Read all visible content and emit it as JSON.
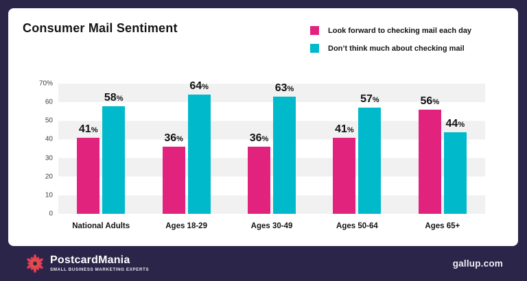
{
  "colors": {
    "background": "#2B2549",
    "card": "#FFFFFF",
    "pink": "#E2237E",
    "cyan": "#00B9CB",
    "stripe": "#F1F1F2"
  },
  "chart_data": {
    "type": "bar",
    "title": "Consumer Mail Sentiment",
    "categories": [
      "National Adults",
      "Ages 18-29",
      "Ages 30-49",
      "Ages 50-64",
      "Ages 65+"
    ],
    "series": [
      {
        "key": "look-forward",
        "name": "Look forward to checking mail each day",
        "color": "#E2237E",
        "values": [
          41,
          36,
          36,
          41,
          56
        ]
      },
      {
        "key": "dont-think",
        "name": "Don’t think much about checking mail",
        "color": "#00B9CB",
        "values": [
          58,
          64,
          63,
          57,
          44
        ]
      }
    ],
    "value_suffix": "%",
    "xlabel": "",
    "ylabel": "",
    "ylim": [
      0,
      70
    ],
    "ytick_step": 10,
    "ytick_labels": [
      "70%",
      "60",
      "50",
      "40",
      "30",
      "20",
      "10",
      "0"
    ],
    "grid": "horizontal-striped-bands",
    "legend_position": "top-right"
  },
  "footer": {
    "logo_text": "PostcardMania",
    "logo_tagline": "SMALL BUSINESS MARKETING EXPERTS",
    "source": "gallup.com"
  }
}
